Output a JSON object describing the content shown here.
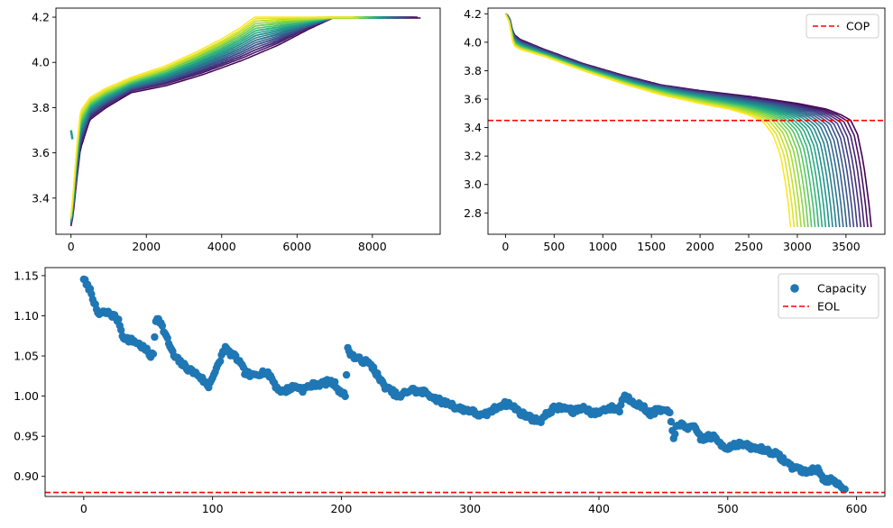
{
  "chart_data": [
    {
      "id": "charge",
      "type": "line",
      "title": "",
      "xlabel": "",
      "ylabel": "",
      "xlim": [
        -400,
        9800
      ],
      "ylim": [
        3.24,
        4.24
      ],
      "xticks": [
        0,
        2000,
        4000,
        6000,
        8000
      ],
      "yticks": [
        3.4,
        3.6,
        3.8,
        4.0,
        4.2
      ],
      "xtick_labels": [
        "0",
        "2000",
        "4000",
        "6000",
        "8000"
      ],
      "ytick_labels": [
        "3.4",
        "3.6",
        "3.8",
        "4.0",
        "4.2"
      ],
      "colormap": "viridis (cycle 1 = purple, last cycle = yellow)",
      "series_count": 24,
      "first_curve": {
        "x": [
          0,
          60,
          150,
          250,
          500,
          900,
          1600,
          2500,
          3500,
          4500,
          5500,
          6300,
          6950,
          9300
        ],
        "y": [
          3.28,
          3.33,
          3.48,
          3.62,
          3.75,
          3.8,
          3.87,
          3.9,
          3.95,
          4.01,
          4.08,
          4.15,
          4.2,
          4.2
        ]
      },
      "last_curve": {
        "x": [
          0,
          60,
          150,
          250,
          500,
          900,
          1600,
          2500,
          3300,
          4000,
          4500,
          4900,
          7500
        ],
        "y": [
          3.32,
          3.42,
          3.62,
          3.78,
          3.84,
          3.88,
          3.93,
          3.98,
          4.04,
          4.1,
          4.15,
          4.2,
          4.2
        ]
      }
    },
    {
      "id": "discharge",
      "type": "line",
      "title": "",
      "xlabel": "",
      "ylabel": "",
      "xlim": [
        -180,
        3900
      ],
      "ylim": [
        2.65,
        4.24
      ],
      "xticks": [
        0,
        500,
        1000,
        1500,
        2000,
        2500,
        3000,
        3500
      ],
      "yticks": [
        2.8,
        3.0,
        3.2,
        3.4,
        3.6,
        3.8,
        4.0,
        4.2
      ],
      "xtick_labels": [
        "0",
        "500",
        "1000",
        "1500",
        "2000",
        "2500",
        "3000",
        "3500"
      ],
      "ytick_labels": [
        "2.8",
        "3.0",
        "3.2",
        "3.4",
        "3.6",
        "3.8",
        "4.0",
        "4.2"
      ],
      "colormap": "viridis (cycle 1 = purple, last cycle = yellow)",
      "series_count": 24,
      "first_curve": {
        "x": [
          0,
          40,
          80,
          150,
          400,
          800,
          1200,
          1600,
          2000,
          2500,
          3000,
          3300,
          3450,
          3550,
          3620,
          3680,
          3730,
          3760
        ],
        "y": [
          4.2,
          4.18,
          4.06,
          4.02,
          3.95,
          3.85,
          3.77,
          3.7,
          3.66,
          3.62,
          3.57,
          3.53,
          3.49,
          3.45,
          3.35,
          3.15,
          2.9,
          2.7
        ]
      },
      "last_curve": {
        "x": [
          0,
          40,
          80,
          150,
          400,
          800,
          1200,
          1600,
          2000,
          2300,
          2500,
          2650,
          2750,
          2830,
          2880,
          2910,
          2930
        ],
        "y": [
          4.2,
          4.14,
          3.98,
          3.95,
          3.9,
          3.8,
          3.71,
          3.63,
          3.57,
          3.53,
          3.49,
          3.44,
          3.35,
          3.2,
          3.0,
          2.85,
          2.7
        ]
      },
      "reference_line": {
        "orientation": "horizontal",
        "value": 3.45,
        "color": "#ff0000",
        "style": "dashed",
        "label": "COP"
      },
      "legend": {
        "position": "top-right",
        "entries": [
          "COP"
        ]
      }
    },
    {
      "id": "capacity",
      "type": "scatter",
      "title": "",
      "xlabel": "",
      "ylabel": "",
      "xlim": [
        -30,
        622
      ],
      "ylim": [
        0.875,
        1.16
      ],
      "xticks": [
        0,
        100,
        200,
        300,
        400,
        500,
        600
      ],
      "yticks": [
        0.9,
        0.95,
        1.0,
        1.05,
        1.1,
        1.15
      ],
      "xtick_labels": [
        "0",
        "100",
        "200",
        "300",
        "400",
        "500",
        "600"
      ],
      "ytick_labels": [
        "0.90",
        "0.95",
        "1.00",
        "1.05",
        "1.10",
        "1.15"
      ],
      "point_count": 592,
      "trend_anchors": {
        "x": [
          0,
          2,
          4,
          6,
          8,
          10,
          12,
          15,
          20,
          25,
          28,
          30,
          35,
          40,
          45,
          50,
          52,
          54,
          56,
          58,
          60,
          65,
          70,
          75,
          80,
          85,
          90,
          95,
          97,
          100,
          102,
          105,
          108,
          110,
          112,
          115,
          120,
          125,
          130,
          135,
          140,
          145,
          150,
          155,
          160,
          165,
          170,
          175,
          180,
          185,
          190,
          195,
          198,
          200,
          203,
          205,
          210,
          215,
          220,
          225,
          230,
          235,
          240,
          245,
          250,
          255,
          260,
          265,
          270,
          275,
          280,
          285,
          290,
          300,
          305,
          310,
          315,
          320,
          325,
          330,
          335,
          340,
          345,
          350,
          355,
          360,
          365,
          370,
          375,
          380,
          385,
          390,
          395,
          400,
          405,
          410,
          413,
          416,
          418,
          420,
          425,
          430,
          435,
          440,
          445,
          450,
          455,
          458,
          460,
          465,
          470,
          475,
          480,
          485,
          490,
          495,
          500,
          505,
          510,
          515,
          520,
          525,
          530,
          535,
          540,
          545,
          550,
          555,
          560,
          565,
          570,
          572,
          575,
          580,
          585,
          590
        ],
        "y": [
          1.147,
          1.138,
          1.135,
          1.128,
          1.118,
          1.105,
          1.102,
          1.104,
          1.103,
          1.098,
          1.09,
          1.075,
          1.07,
          1.068,
          1.062,
          1.055,
          1.05,
          1.052,
          1.095,
          1.098,
          1.09,
          1.07,
          1.05,
          1.042,
          1.035,
          1.03,
          1.025,
          1.015,
          1.012,
          1.025,
          1.03,
          1.04,
          1.055,
          1.06,
          1.055,
          1.052,
          1.045,
          1.03,
          1.025,
          1.028,
          1.03,
          1.025,
          1.01,
          1.005,
          1.01,
          1.012,
          1.008,
          1.012,
          1.015,
          1.015,
          1.018,
          1.015,
          1.008,
          1.005,
          1.0,
          1.058,
          1.048,
          1.045,
          1.042,
          1.035,
          1.02,
          1.01,
          1.005,
          0.998,
          1.005,
          1.008,
          1.005,
          1.005,
          1.0,
          0.995,
          0.992,
          0.99,
          0.985,
          0.982,
          0.978,
          0.975,
          0.98,
          0.985,
          0.99,
          0.99,
          0.985,
          0.978,
          0.975,
          0.97,
          0.97,
          0.978,
          0.985,
          0.985,
          0.985,
          0.98,
          0.985,
          0.985,
          0.978,
          0.98,
          0.984,
          0.985,
          0.985,
          0.982,
          0.996,
          1.0,
          0.995,
          0.99,
          0.985,
          0.978,
          0.982,
          0.982,
          0.978,
          0.95,
          0.96,
          0.965,
          0.96,
          0.96,
          0.945,
          0.95,
          0.948,
          0.94,
          0.935,
          0.94,
          0.94,
          0.938,
          0.935,
          0.935,
          0.932,
          0.93,
          0.925,
          0.918,
          0.912,
          0.91,
          0.905,
          0.908,
          0.908,
          0.905,
          0.895,
          0.895,
          0.89,
          0.886
        ]
      },
      "marker_color": "#1f77b4",
      "reference_line": {
        "orientation": "horizontal",
        "value": 0.88,
        "color": "#ff0000",
        "style": "dashed",
        "label": "EOL"
      },
      "legend": {
        "position": "top-right",
        "entries": [
          "Capacity",
          "EOL"
        ]
      }
    }
  ]
}
